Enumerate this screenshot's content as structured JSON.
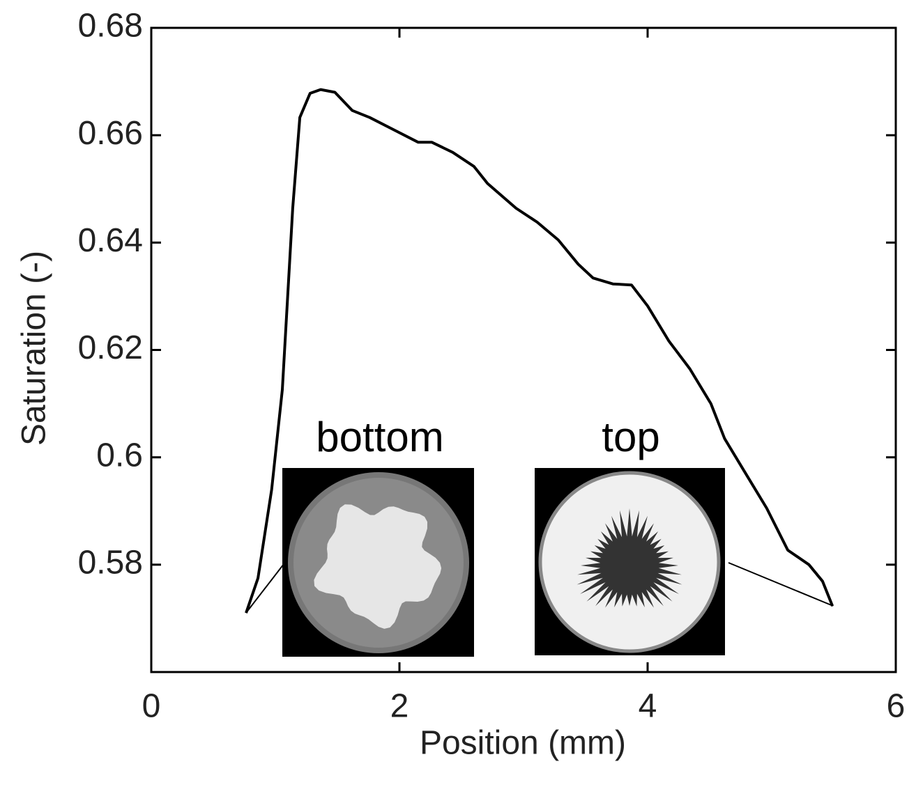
{
  "chart_data": {
    "type": "line",
    "x_label": "Position (mm)",
    "y_label": "Saturation (-)",
    "annotations": [
      "bottom",
      "top"
    ],
    "color": "#000000",
    "x": [
      0.764,
      0.86,
      0.97,
      1.056,
      1.14,
      1.197,
      1.28,
      1.365,
      1.48,
      1.62,
      1.76,
      1.93,
      2.15,
      2.26,
      2.43,
      2.6,
      2.71,
      2.94,
      3.11,
      3.28,
      3.44,
      3.56,
      3.72,
      3.87,
      4.0,
      4.17,
      4.34,
      4.51,
      4.62,
      4.79,
      4.96,
      5.13,
      5.3,
      5.41,
      5.49
    ],
    "values": [
      0.571,
      0.5775,
      0.594,
      0.6126,
      0.6464,
      0.6633,
      0.6678,
      0.6685,
      0.668,
      0.6646,
      0.6633,
      0.6613,
      0.6587,
      0.6587,
      0.6568,
      0.6542,
      0.651,
      0.6464,
      0.6438,
      0.6405,
      0.636,
      0.6334,
      0.6323,
      0.6321,
      0.6282,
      0.6217,
      0.6165,
      0.61,
      0.6035,
      0.597,
      0.5905,
      0.5827,
      0.58,
      0.5769,
      0.5723
    ],
    "xlim": [
      0,
      6
    ],
    "ylim": [
      0.56,
      0.68
    ],
    "xticks": [
      0,
      2,
      4,
      6
    ],
    "yticks": [
      0.58,
      0.6,
      0.62,
      0.64,
      0.66,
      0.68
    ]
  }
}
